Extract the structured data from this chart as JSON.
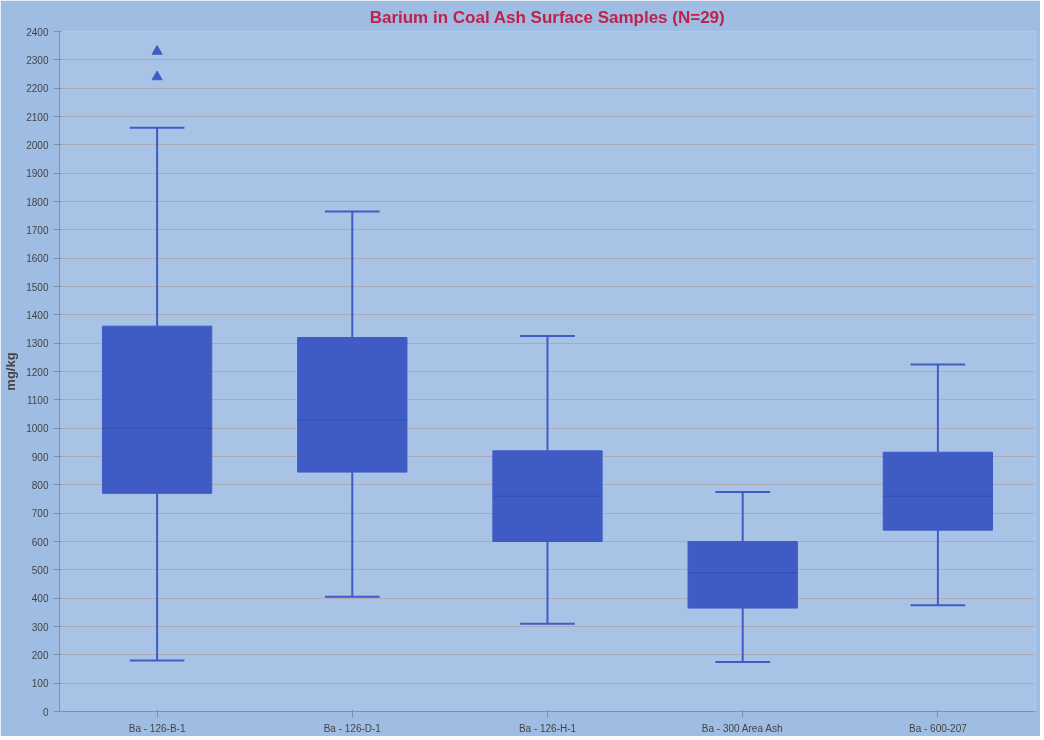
{
  "chart_data": {
    "type": "box",
    "title": "Barium in Coal Ash Surface Samples (N=29)",
    "ylabel": "mg/kg",
    "categories": [
      "Ba - 126-B-1",
      "Ba - 126-D-1",
      "Ba - 126-H-1",
      "Ba - 300 Area Ash",
      "Ba - 600-207"
    ],
    "boxes": [
      {
        "low": 180,
        "q1": 770,
        "median": 1000,
        "q3": 1360,
        "high": 2060,
        "outliers": [
          2240,
          2330
        ]
      },
      {
        "low": 405,
        "q1": 845,
        "median": 1030,
        "q3": 1320,
        "high": 1765
      },
      {
        "low": 310,
        "q1": 600,
        "median": 760,
        "q3": 920,
        "high": 1325
      },
      {
        "low": 175,
        "q1": 365,
        "median": 490,
        "q3": 600,
        "high": 775
      },
      {
        "low": 375,
        "q1": 640,
        "median": 760,
        "q3": 915,
        "high": 1225
      }
    ],
    "color": "#3f5cc4",
    "marker": "triangle",
    "ylim": [
      0,
      2400
    ],
    "yticks": [
      0,
      100,
      200,
      300,
      400,
      500,
      600,
      700,
      800,
      900,
      1000,
      1100,
      1200,
      1300,
      1400,
      1500,
      1600,
      1700,
      1800,
      1900,
      2000,
      2100,
      2200,
      2300,
      2400
    ],
    "grid": "y"
  }
}
